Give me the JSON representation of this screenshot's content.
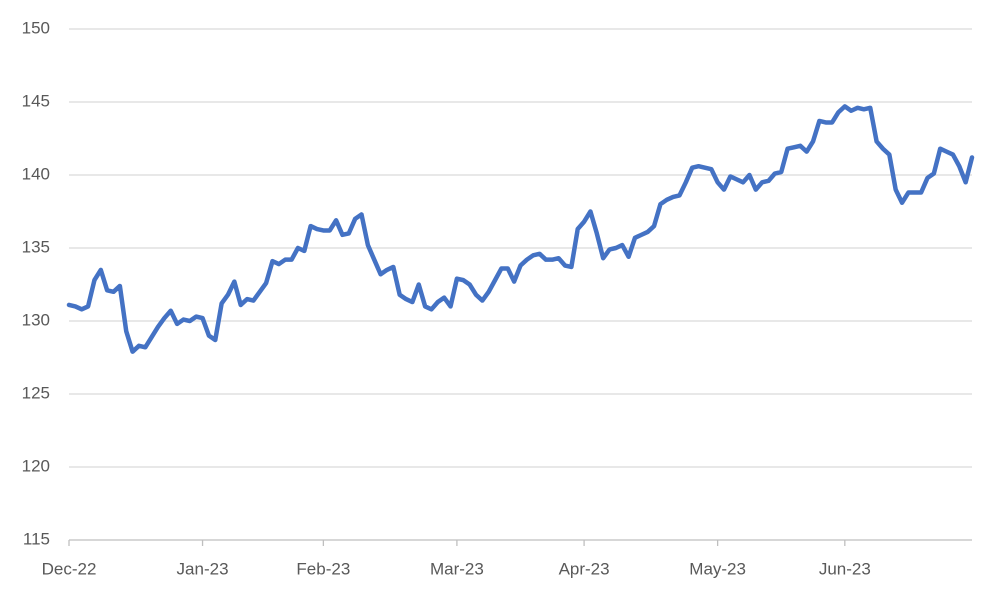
{
  "chart_data": {
    "type": "line",
    "categories": [
      "Dec-22",
      null,
      null,
      null,
      null,
      null,
      null,
      null,
      null,
      null,
      null,
      null,
      null,
      null,
      null,
      null,
      null,
      null,
      null,
      null,
      null,
      "Jan-23",
      null,
      null,
      null,
      null,
      null,
      null,
      null,
      null,
      null,
      null,
      null,
      null,
      null,
      null,
      null,
      null,
      null,
      null,
      "Feb-23",
      null,
      null,
      null,
      null,
      null,
      null,
      null,
      null,
      null,
      null,
      null,
      null,
      null,
      null,
      null,
      null,
      null,
      null,
      null,
      null,
      "Mar-23",
      null,
      null,
      null,
      null,
      null,
      null,
      null,
      null,
      null,
      null,
      null,
      null,
      null,
      null,
      null,
      null,
      null,
      null,
      null,
      "Apr-23",
      null,
      null,
      null,
      null,
      null,
      null,
      null,
      null,
      null,
      null,
      null,
      null,
      null,
      null,
      null,
      null,
      null,
      null,
      null,
      null,
      "May-23",
      null,
      null,
      null,
      null,
      null,
      null,
      null,
      null,
      null,
      null,
      null,
      null,
      null,
      null,
      null,
      null,
      null,
      null,
      null,
      "Jun-23",
      null,
      null,
      null,
      null,
      null,
      null,
      null,
      null,
      null,
      null,
      null,
      null,
      null,
      null,
      null,
      null,
      null,
      null,
      null,
      null
    ],
    "values": [
      131.1,
      131.0,
      130.8,
      131.0,
      132.8,
      133.5,
      132.1,
      132.0,
      132.4,
      129.3,
      127.9,
      128.3,
      128.2,
      128.9,
      129.6,
      130.2,
      130.7,
      129.8,
      130.1,
      130.0,
      130.3,
      130.2,
      129.0,
      128.7,
      131.2,
      131.8,
      132.7,
      131.1,
      131.5,
      131.4,
      132.0,
      132.6,
      134.1,
      133.9,
      134.2,
      134.2,
      135.0,
      134.8,
      136.5,
      136.3,
      136.2,
      136.2,
      136.9,
      135.9,
      136.0,
      137.0,
      137.3,
      135.2,
      134.2,
      133.2,
      133.5,
      133.7,
      131.8,
      131.5,
      131.3,
      132.5,
      131.0,
      130.8,
      131.3,
      131.6,
      131.0,
      132.9,
      132.8,
      132.5,
      131.8,
      131.4,
      132.0,
      132.8,
      133.6,
      133.6,
      132.7,
      133.8,
      134.2,
      134.5,
      134.6,
      134.2,
      134.2,
      134.3,
      133.8,
      133.7,
      136.3,
      136.8,
      137.5,
      136.0,
      134.3,
      134.9,
      135.0,
      135.2,
      134.4,
      135.7,
      135.9,
      136.1,
      136.5,
      138.0,
      138.3,
      138.5,
      138.6,
      139.5,
      140.5,
      140.6,
      140.5,
      140.4,
      139.5,
      139.0,
      139.9,
      139.7,
      139.5,
      140.0,
      139.0,
      139.5,
      139.6,
      140.1,
      140.2,
      141.8,
      141.9,
      142.0,
      141.6,
      142.3,
      143.7,
      143.6,
      143.6,
      144.3,
      144.7,
      144.4,
      144.6,
      144.5,
      144.6,
      142.3,
      141.8,
      141.4,
      139.0,
      138.1,
      138.8,
      138.8,
      138.8,
      139.8,
      140.1,
      141.8,
      141.6,
      141.4,
      140.6,
      139.5,
      141.2
    ],
    "color": "#4472c4",
    "ylim": [
      115,
      150
    ],
    "yticks": [
      115,
      120,
      125,
      130,
      135,
      140,
      145,
      150
    ],
    "grid": true
  }
}
